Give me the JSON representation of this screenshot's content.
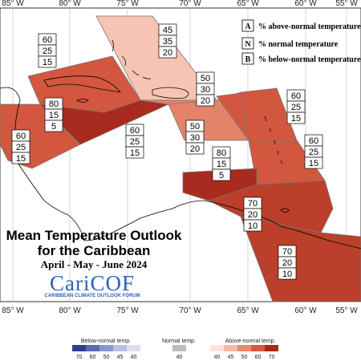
{
  "title_line1": "Mean Temperature Outlook",
  "title_line2": "for the Caribbean",
  "period": "April - May - June 2024",
  "logo": {
    "name": "CariCOF",
    "subtitle": "CARIBBEAN CLIMATE OUTLOOK FORUM"
  },
  "longitudes_top": [
    "85° W",
    "80° W",
    "75° W",
    "70° W",
    "65° W",
    "60° W",
    "55° W"
  ],
  "longitudes_bottom": [
    "85° W",
    "80° W",
    "75° W",
    "70° W",
    "65° W",
    "60° W",
    "55° W"
  ],
  "legend_key": [
    {
      "letter": "A",
      "text": "% above-normal temperature"
    },
    {
      "letter": "N",
      "text": "% normal temperature"
    },
    {
      "letter": "B",
      "text": "% below-normal temperature"
    }
  ],
  "color_legend": {
    "below_label": "Below-normal temp.",
    "normal_label": "Normal temp.",
    "above_label": "Above-normal temp.",
    "below_ticks": [
      "70",
      "60",
      "50",
      "45",
      "40"
    ],
    "normal_ticks": [
      "40"
    ],
    "above_ticks": [
      "40",
      "45",
      "50",
      "60",
      "70"
    ],
    "below_colors": [
      "#2f3f8f",
      "#5a6ab8",
      "#8b95cf",
      "#b9bfe3",
      "#dcdff2"
    ],
    "normal_color": "#bdbdbd",
    "above_colors": [
      "#fbe3dc",
      "#f5b9a8",
      "#e98a70",
      "#d45a3f",
      "#a8281c"
    ]
  },
  "regions": [
    {
      "name": "bahamas",
      "above": "45",
      "normal": "35",
      "below": "20",
      "fill": "#f7c3b2"
    },
    {
      "name": "cuba-belize",
      "above": "60",
      "normal": "25",
      "below": "15",
      "fill": "#d3573e"
    },
    {
      "name": "cayman-jamaica",
      "above": "80",
      "normal": "15",
      "below": "5",
      "fill": "#a92b1f"
    },
    {
      "name": "central-america",
      "above": "60",
      "normal": "25",
      "below": "15",
      "fill": "#d3573e"
    },
    {
      "name": "hispaniola-north",
      "above": "50",
      "normal": "30",
      "below": "20",
      "fill": "#e4826a"
    },
    {
      "name": "hispaniola-south",
      "above": "50",
      "normal": "30",
      "below": "20",
      "fill": "#e4826a"
    },
    {
      "name": "caribbean-south",
      "above": "60",
      "normal": "25",
      "below": "15",
      "fill": "#d3573e"
    },
    {
      "name": "leeward-islands",
      "above": "60",
      "normal": "25",
      "below": "15",
      "fill": "#d3573e"
    },
    {
      "name": "windward-islands",
      "above": "60",
      "normal": "25",
      "below": "15",
      "fill": "#d3573e"
    },
    {
      "name": "abc-islands",
      "above": "80",
      "normal": "15",
      "below": "5",
      "fill": "#a92b1f"
    },
    {
      "name": "trinidad",
      "above": "70",
      "normal": "20",
      "below": "10",
      "fill": "#bb3f2a"
    },
    {
      "name": "guianas",
      "above": "70",
      "normal": "20",
      "below": "10",
      "fill": "#bb3f2a"
    }
  ]
}
